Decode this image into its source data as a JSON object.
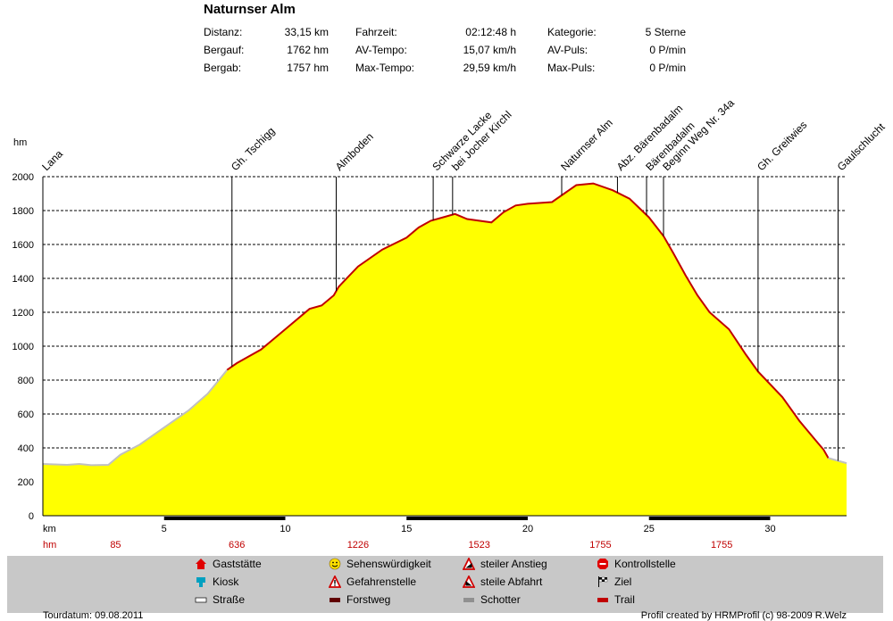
{
  "header": {
    "title": "Naturnser Alm",
    "stats": [
      {
        "label": "Distanz:",
        "value": "33,15 km"
      },
      {
        "label": "Bergauf:",
        "value": "1762 hm"
      },
      {
        "label": "Bergab:",
        "value": "1757 hm"
      },
      {
        "label": "Fahrzeit:",
        "value": "02:12:48 h"
      },
      {
        "label": "AV-Tempo:",
        "value": "15,07 km/h"
      },
      {
        "label": "Max-Tempo:",
        "value": "29,59 km/h"
      },
      {
        "label": "Kategorie:",
        "value": "5 Sterne"
      },
      {
        "label": "AV-Puls:",
        "value": "0 P/min"
      },
      {
        "label": "Max-Puls:",
        "value": "0 P/min"
      }
    ]
  },
  "chart_data": {
    "type": "area",
    "ylabel": "hm",
    "xlabel": "km",
    "xlim": [
      0,
      33.15
    ],
    "ylim": [
      0,
      2000
    ],
    "yticks": [
      0,
      200,
      400,
      600,
      800,
      1000,
      1200,
      1400,
      1600,
      1800,
      2000
    ],
    "xticks": [
      5,
      10,
      15,
      20,
      25,
      30
    ],
    "grid": true,
    "colors": {
      "fill": "#ffff00",
      "road": "#c0c0c0",
      "forest": "#c00000",
      "grid": "#000000"
    },
    "profile": [
      [
        0,
        305
      ],
      [
        1,
        300
      ],
      [
        1.5,
        305
      ],
      [
        2,
        298
      ],
      [
        2.7,
        300
      ],
      [
        3.2,
        360
      ],
      [
        4,
        420
      ],
      [
        5,
        520
      ],
      [
        6,
        620
      ],
      [
        6.8,
        720
      ],
      [
        7.6,
        860
      ],
      [
        8,
        900
      ],
      [
        9,
        980
      ],
      [
        10,
        1100
      ],
      [
        11,
        1220
      ],
      [
        11.5,
        1240
      ],
      [
        12,
        1300
      ],
      [
        12.2,
        1350
      ],
      [
        13,
        1470
      ],
      [
        14,
        1570
      ],
      [
        15,
        1640
      ],
      [
        15.5,
        1700
      ],
      [
        16,
        1740
      ],
      [
        16.5,
        1760
      ],
      [
        17,
        1780
      ],
      [
        17.5,
        1750
      ],
      [
        18.5,
        1730
      ],
      [
        19,
        1790
      ],
      [
        19.5,
        1830
      ],
      [
        20,
        1840
      ],
      [
        21,
        1850
      ],
      [
        21.5,
        1900
      ],
      [
        22,
        1950
      ],
      [
        22.7,
        1960
      ],
      [
        23.5,
        1920
      ],
      [
        24.2,
        1870
      ],
      [
        25,
        1760
      ],
      [
        25.6,
        1650
      ],
      [
        26,
        1550
      ],
      [
        26.5,
        1420
      ],
      [
        27,
        1300
      ],
      [
        27.5,
        1200
      ],
      [
        28.3,
        1100
      ],
      [
        29,
        950
      ],
      [
        29.5,
        850
      ],
      [
        30.5,
        700
      ],
      [
        31.2,
        560
      ],
      [
        31.9,
        440
      ],
      [
        32.2,
        390
      ],
      [
        32.4,
        340
      ],
      [
        33.15,
        310
      ]
    ],
    "surface": [
      {
        "type": "road",
        "from": 0,
        "to": 7.6
      },
      {
        "type": "forest",
        "from": 7.6,
        "to": 32.4
      },
      {
        "type": "road",
        "from": 32.4,
        "to": 33.15
      }
    ],
    "waypoints": [
      {
        "name": "Lana",
        "km": 0
      },
      {
        "name": "Gh. Tschigg",
        "km": 7.8
      },
      {
        "name": "Almboden",
        "km": 12.1
      },
      {
        "name": "Schwarze Lacke",
        "km": 16.1
      },
      {
        "name": "bei Jocher Kirchl",
        "km": 16.9
      },
      {
        "name": "Naturnser Alm",
        "km": 21.4
      },
      {
        "name": "Abz. Bärenbadalm",
        "km": 23.7
      },
      {
        "name": "Bärenbadalm",
        "km": 24.9
      },
      {
        "name": "Beginn Weg Nr. 34a",
        "km": 25.6
      },
      {
        "name": "Gh. Greitwies",
        "km": 29.5
      },
      {
        "name": "Gaulschlucht",
        "km": 32.8
      }
    ],
    "segment_bar": [
      [
        5,
        10
      ],
      [
        15,
        20
      ],
      [
        25,
        30
      ]
    ],
    "hm_row": [
      {
        "km": 3,
        "value": "85"
      },
      {
        "km": 8,
        "value": "636"
      },
      {
        "km": 13,
        "value": "1226"
      },
      {
        "km": 18,
        "value": "1523"
      },
      {
        "km": 23,
        "value": "1755"
      },
      {
        "km": 28,
        "value": "1755"
      }
    ],
    "hm_row_label": "hm"
  },
  "legend": [
    {
      "label": "Gaststätte",
      "icon": "house-icon"
    },
    {
      "label": "Kiosk",
      "icon": "kiosk-icon"
    },
    {
      "label": "Straße",
      "icon": "road-swatch"
    },
    {
      "label": "Sehenswürdigkeit",
      "icon": "smiley-icon"
    },
    {
      "label": "Gefahrenstelle",
      "icon": "warning-icon"
    },
    {
      "label": "Forstweg",
      "icon": "forest-road-swatch"
    },
    {
      "label": "steiler Anstieg",
      "icon": "steep-climb-icon"
    },
    {
      "label": "steile Abfahrt",
      "icon": "steep-descent-icon"
    },
    {
      "label": "Schotter",
      "icon": "gravel-swatch"
    },
    {
      "label": "Kontrollstelle",
      "icon": "stop-icon"
    },
    {
      "label": "Ziel",
      "icon": "finish-flag-icon"
    },
    {
      "label": "Trail",
      "icon": "trail-swatch"
    }
  ],
  "footer": {
    "left": "Tourdatum: 09.08.2011",
    "right": "Profil created by HRMProfil (c) 98-2009 R.Welz"
  }
}
